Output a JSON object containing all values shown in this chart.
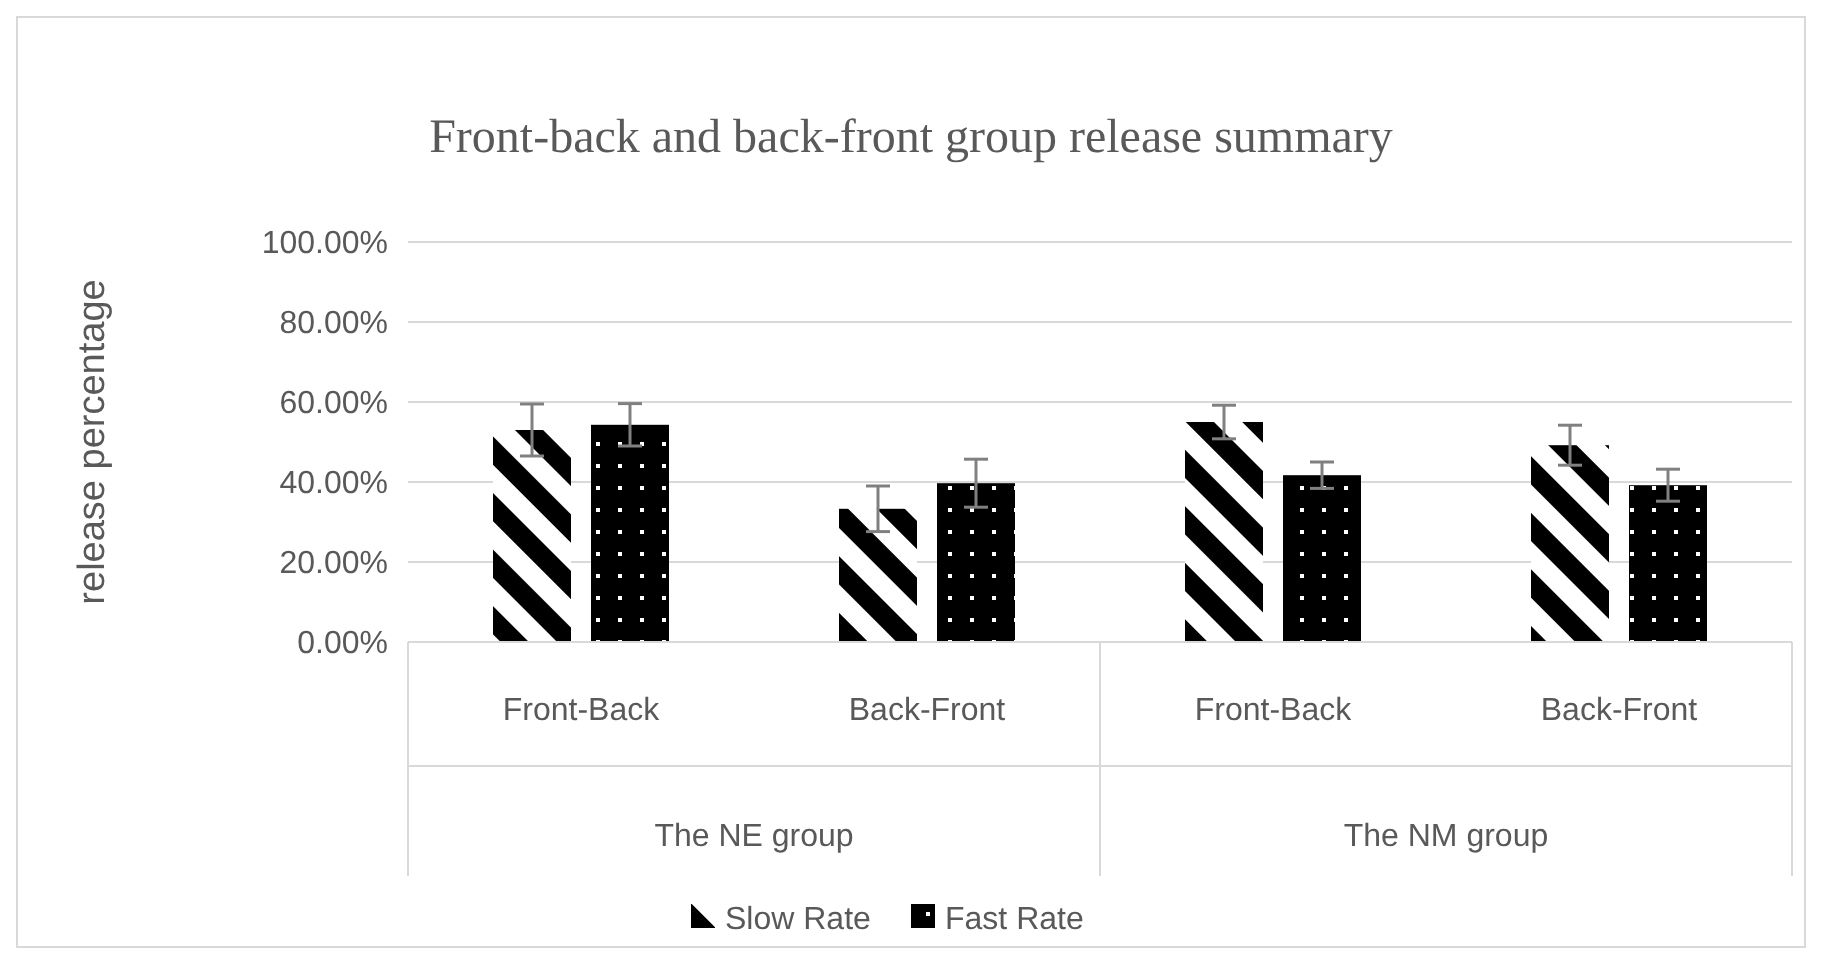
{
  "chart_data": {
    "type": "bar",
    "title": "Front-back and back-front group release summary",
    "ylabel": "release percentage",
    "categories": [
      "Front-Back",
      "Back-Front",
      "Front-Back",
      "Back-Front"
    ],
    "annotations": [
      "The NE group",
      "The NM group"
    ],
    "series": [
      {
        "name": "Slow Rate",
        "color": "#000000",
        "values": [
          53,
          33.3,
          55,
          49.2
        ],
        "errors": [
          6.5,
          5.7,
          4.2,
          5
        ]
      },
      {
        "name": "Fast Rate",
        "color": "#000000",
        "values": [
          54.3,
          39.7,
          41.7,
          39.2
        ],
        "errors": [
          5.3,
          6,
          3.3,
          4
        ]
      }
    ],
    "ylim": [
      0,
      100
    ],
    "yticks": [
      {
        "value": 0,
        "label": "0.00%"
      },
      {
        "value": 20,
        "label": "20.00%"
      },
      {
        "value": 40,
        "label": "40.00%"
      },
      {
        "value": 60,
        "label": "60.00%"
      },
      {
        "value": 80,
        "label": "80.00%"
      },
      {
        "value": 100,
        "label": "100.00%"
      }
    ],
    "grid": "y",
    "legend": "bottom"
  }
}
